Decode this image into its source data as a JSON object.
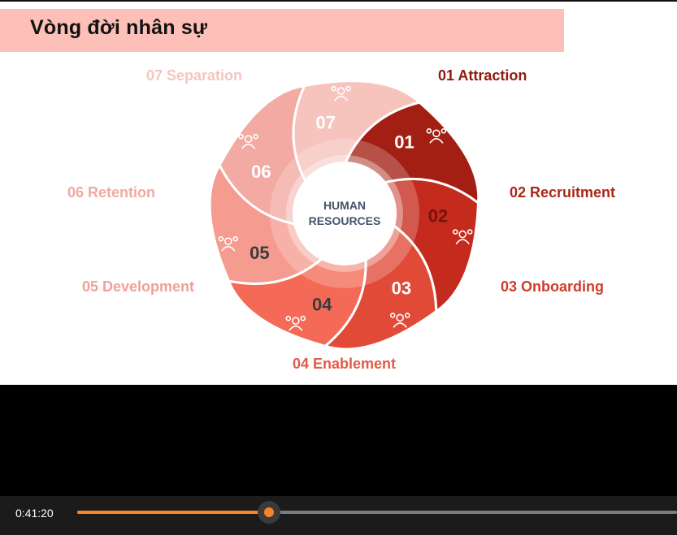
{
  "slide": {
    "title": "Vòng đời nhân sự",
    "center_lines": [
      "HUMAN",
      "RESOURCES"
    ],
    "stages": [
      {
        "num": "01",
        "label": "01 Attraction",
        "color": "#a31f13",
        "label_color": "#8e1b10",
        "icon": "magnet-people-icon"
      },
      {
        "num": "02",
        "label": "02 Recruitment",
        "color": "#c42b1d",
        "label_color": "#a9281b",
        "icon": "search-network-icon"
      },
      {
        "num": "03",
        "label": "03 Onboarding",
        "color": "#e04a36",
        "label_color": "#cf3d2b",
        "icon": "team-group-icon"
      },
      {
        "num": "04",
        "label": "04 Enablement",
        "color": "#f46a57",
        "label_color": "#e15a47",
        "icon": "gear-people-icon"
      },
      {
        "num": "05",
        "label": "05 Development",
        "color": "#f59b90",
        "label_color": "#eea198",
        "icon": "growth-person-icon"
      },
      {
        "num": "06",
        "label": "06 Retention",
        "color": "#f2aaa2",
        "label_color": "#f0aaa2",
        "icon": "refresh-person-icon"
      },
      {
        "num": "07",
        "label": "07 Separation",
        "color": "#f7c3bd",
        "label_color": "#f5c6c0",
        "icon": "people-transfer-icon"
      }
    ]
  },
  "player": {
    "time": "0:41:20",
    "progress": 0.32,
    "accent": "#f7842b"
  }
}
